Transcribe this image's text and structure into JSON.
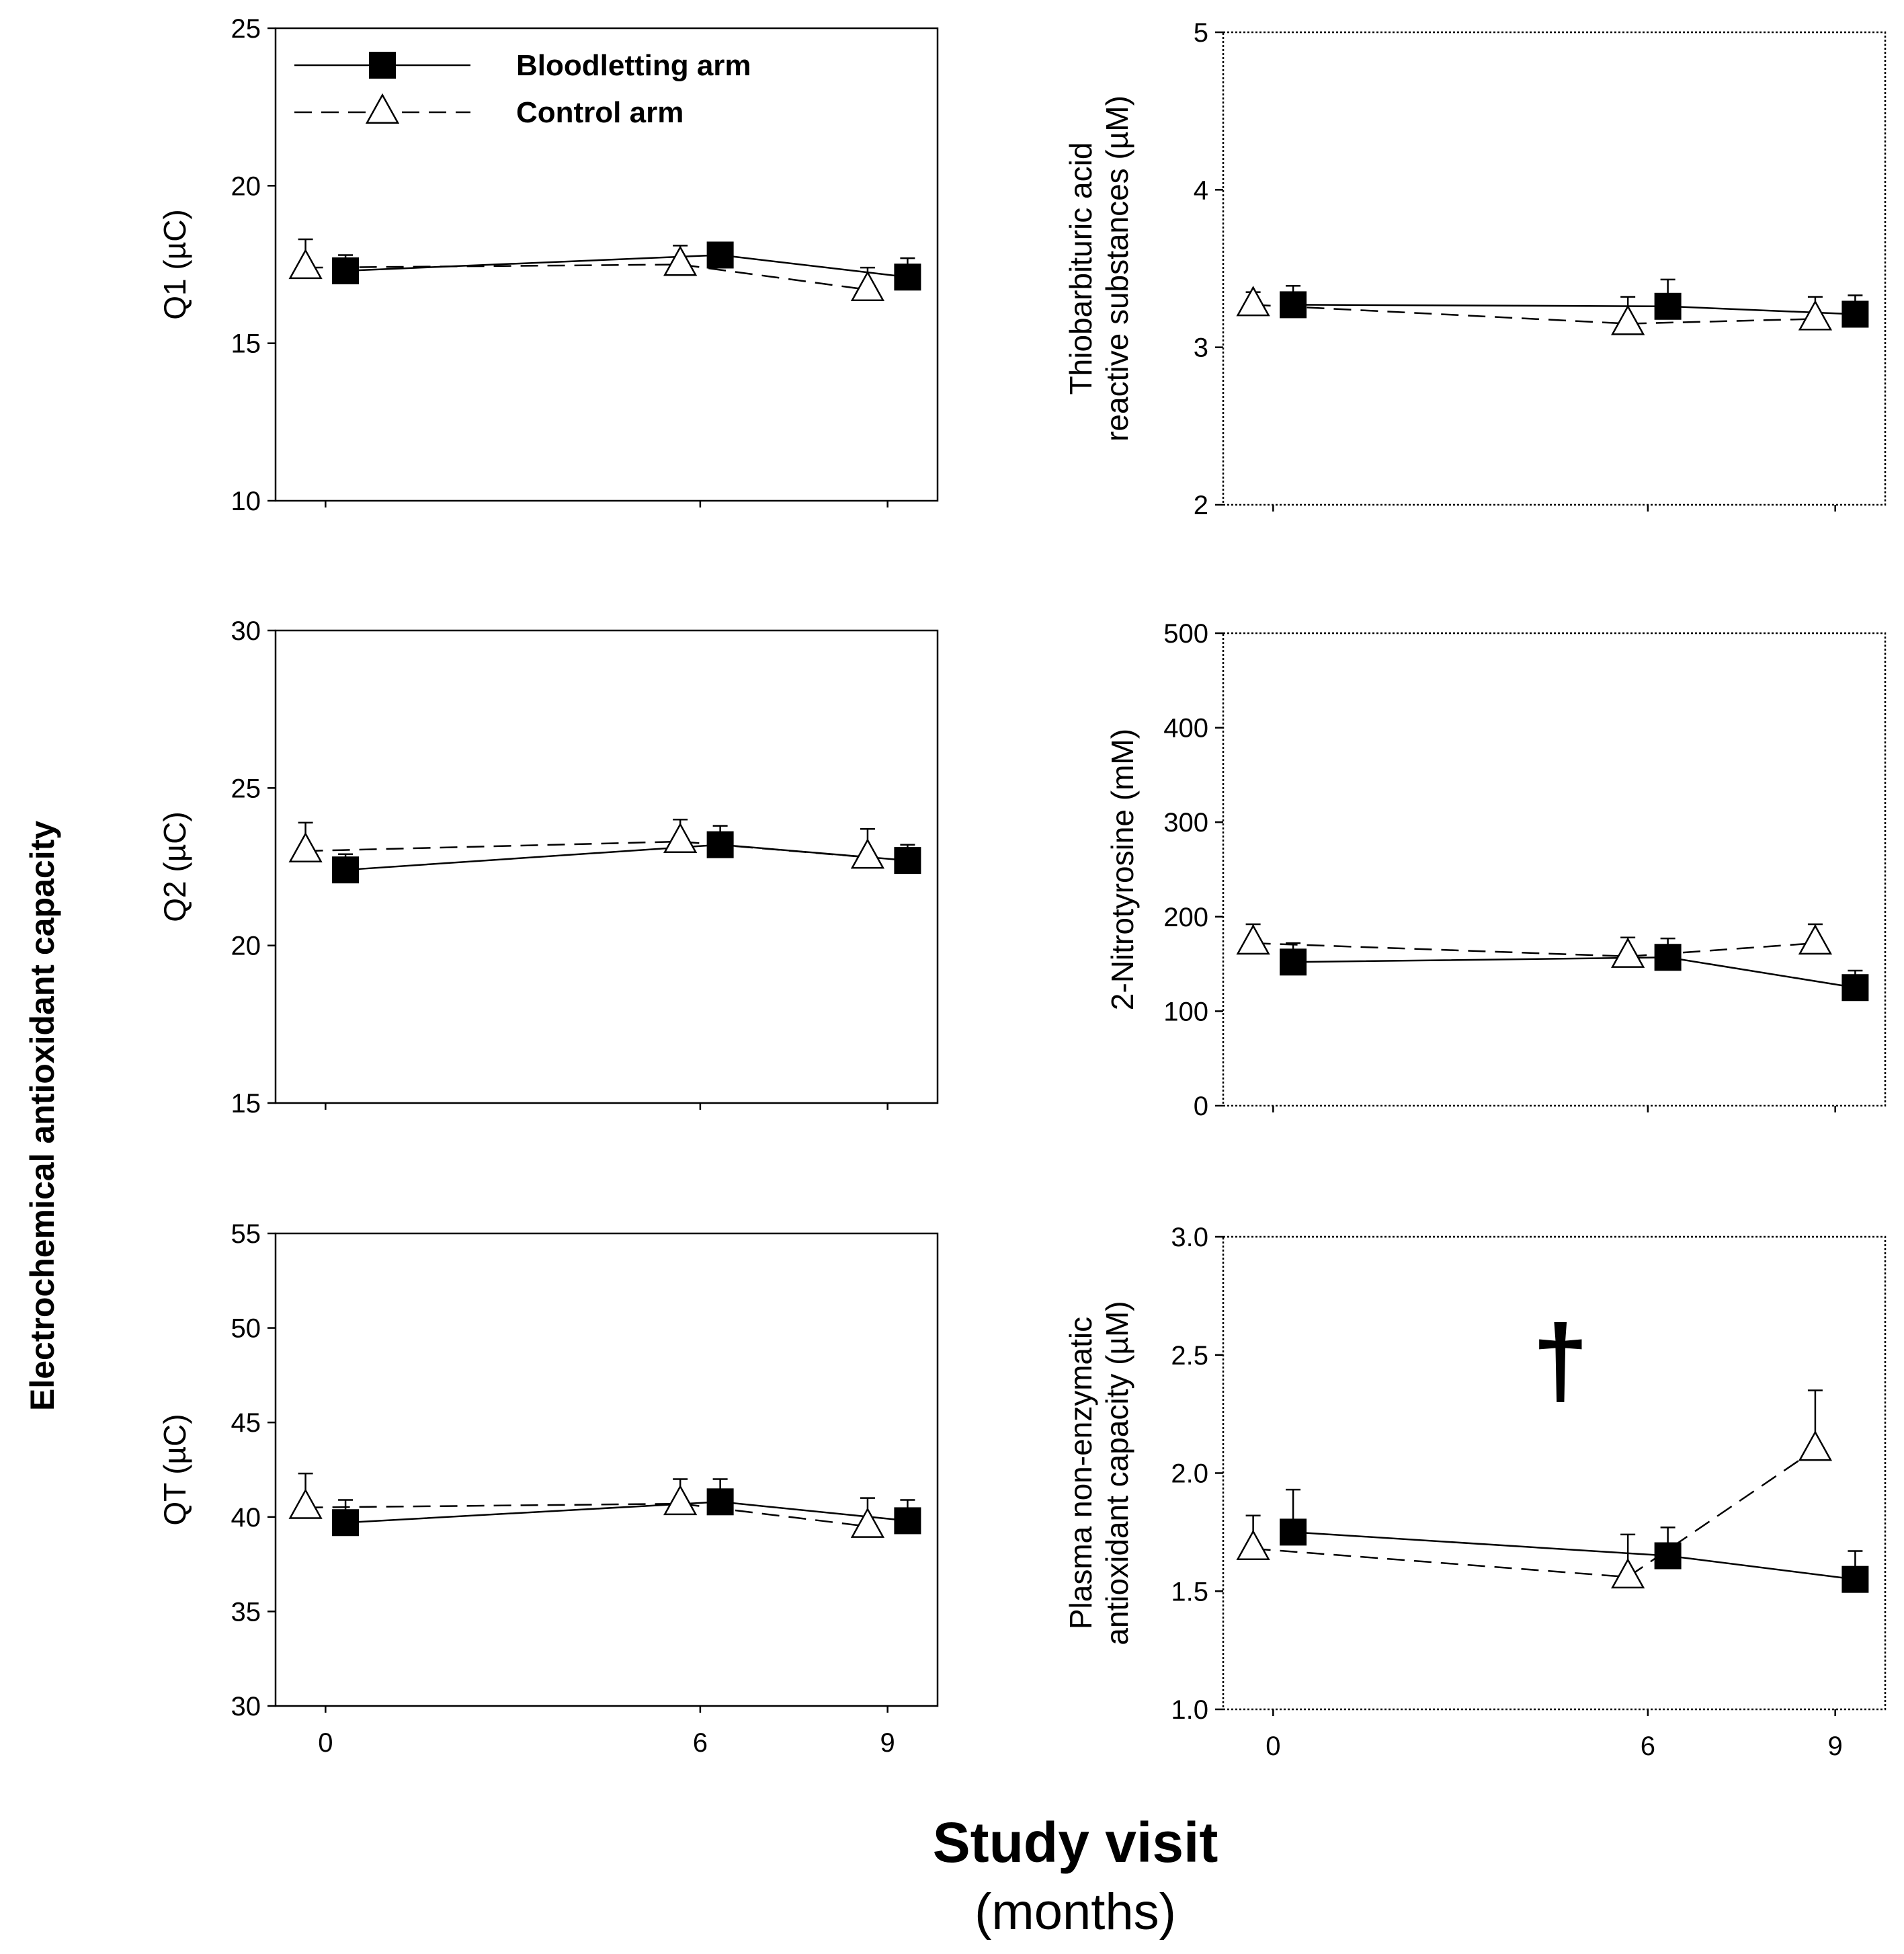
{
  "figure": {
    "shared_ylabel": "Electrochemical antioxidant capacity",
    "shared_xlabel": "Study visit",
    "shared_xlabel_unit": "(months)",
    "dagger_symbol": "†"
  },
  "legend": {
    "position": "top-left of first panel",
    "entries": [
      {
        "name": "Bloodletting arm",
        "marker": "filled-square",
        "line": "solid"
      },
      {
        "name": "Control arm",
        "marker": "open-triangle",
        "line": "dashed"
      }
    ]
  },
  "chart_data": [
    {
      "id": "q1",
      "type": "line",
      "ylabel": "Q1 (µC)",
      "ylim": [
        10,
        25
      ],
      "yticks": [
        "10",
        "15",
        "20",
        "25"
      ],
      "x_categories": [
        "0",
        "6",
        "9"
      ],
      "xlim": [
        -0.8,
        9.8
      ],
      "series": [
        {
          "name": "Bloodletting arm",
          "x": [
            0,
            6,
            9
          ],
          "y": [
            17.3,
            17.8,
            17.1
          ],
          "err": [
            0.5,
            0.4,
            0.6
          ]
        },
        {
          "name": "Control arm",
          "x": [
            0,
            6,
            9
          ],
          "y": [
            17.4,
            17.5,
            16.7
          ],
          "err": [
            0.9,
            0.6,
            0.7
          ]
        }
      ]
    },
    {
      "id": "tbars",
      "type": "line",
      "ylabel": "Thiobarbituric acid\nreactive substances (µM)",
      "ylim": [
        2,
        5
      ],
      "yticks": [
        "2",
        "3",
        "4",
        "5"
      ],
      "x_categories": [
        "0",
        "6",
        "9"
      ],
      "xlim": [
        -0.8,
        9.8
      ],
      "series": [
        {
          "name": "Bloodletting arm",
          "x": [
            0,
            6,
            9
          ],
          "y": [
            3.27,
            3.26,
            3.21
          ],
          "err": [
            0.12,
            0.17,
            0.12
          ]
        },
        {
          "name": "Control arm",
          "x": [
            0,
            6,
            9
          ],
          "y": [
            3.27,
            3.15,
            3.18
          ],
          "err": [
            0.08,
            0.17,
            0.14
          ]
        }
      ]
    },
    {
      "id": "q2",
      "type": "line",
      "ylabel": "Q2 (µC)",
      "ylim": [
        15,
        30
      ],
      "yticks": [
        "15",
        "20",
        "25",
        "30"
      ],
      "x_categories": [
        "0",
        "6",
        "9"
      ],
      "xlim": [
        -0.8,
        9.8
      ],
      "series": [
        {
          "name": "Bloodletting arm",
          "x": [
            0,
            6,
            9
          ],
          "y": [
            22.4,
            23.2,
            22.7
          ],
          "err": [
            0.5,
            0.6,
            0.5
          ]
        },
        {
          "name": "Control arm",
          "x": [
            0,
            6,
            9
          ],
          "y": [
            23.0,
            23.3,
            22.8
          ],
          "err": [
            0.9,
            0.7,
            0.9
          ]
        }
      ]
    },
    {
      "id": "nitrotyrosine",
      "type": "line",
      "ylabel": "2-Nitrotyrosine (mM)",
      "ylim": [
        0,
        500
      ],
      "yticks": [
        "0",
        "100",
        "200",
        "300",
        "400",
        "500"
      ],
      "x_categories": [
        "0",
        "6",
        "9"
      ],
      "xlim": [
        -0.8,
        9.8
      ],
      "series": [
        {
          "name": "Bloodletting arm",
          "x": [
            0,
            6,
            9
          ],
          "y": [
            152,
            157,
            125
          ],
          "err": [
            20,
            20,
            18
          ]
        },
        {
          "name": "Control arm",
          "x": [
            0,
            6,
            9
          ],
          "y": [
            172,
            158,
            172
          ],
          "err": [
            20,
            20,
            20
          ]
        }
      ]
    },
    {
      "id": "qt",
      "type": "line",
      "ylabel": "QT (µC)",
      "ylim": [
        30,
        55
      ],
      "yticks": [
        "30",
        "35",
        "40",
        "45",
        "50",
        "55"
      ],
      "x_categories": [
        "0",
        "6",
        "9"
      ],
      "xlim": [
        -0.8,
        9.8
      ],
      "series": [
        {
          "name": "Bloodletting arm",
          "x": [
            0,
            6,
            9
          ],
          "y": [
            39.7,
            40.8,
            39.8
          ],
          "err": [
            1.2,
            1.2,
            1.1
          ]
        },
        {
          "name": "Control arm",
          "x": [
            0,
            6,
            9
          ],
          "y": [
            40.5,
            40.7,
            39.5
          ],
          "err": [
            1.8,
            1.3,
            1.5
          ]
        }
      ]
    },
    {
      "id": "pnac",
      "type": "line",
      "ylabel": "Plasma non-enzymatic\nantioxidant capacity (µM)",
      "ylim": [
        1.0,
        3.0
      ],
      "yticks": [
        "1.0",
        "1.5",
        "2.0",
        "2.5",
        "3.0"
      ],
      "x_categories": [
        "0",
        "6",
        "9"
      ],
      "xlim": [
        -0.8,
        9.8
      ],
      "annotation": {
        "symbol": "†",
        "x": 4.6,
        "y": 2.5
      },
      "series": [
        {
          "name": "Bloodletting arm",
          "x": [
            0,
            6,
            9
          ],
          "y": [
            1.75,
            1.65,
            1.55
          ],
          "err": [
            0.18,
            0.12,
            0.12
          ]
        },
        {
          "name": "Control arm",
          "x": [
            0,
            6,
            9
          ],
          "y": [
            1.68,
            1.56,
            2.1
          ],
          "err": [
            0.14,
            0.18,
            0.25
          ]
        }
      ]
    }
  ]
}
